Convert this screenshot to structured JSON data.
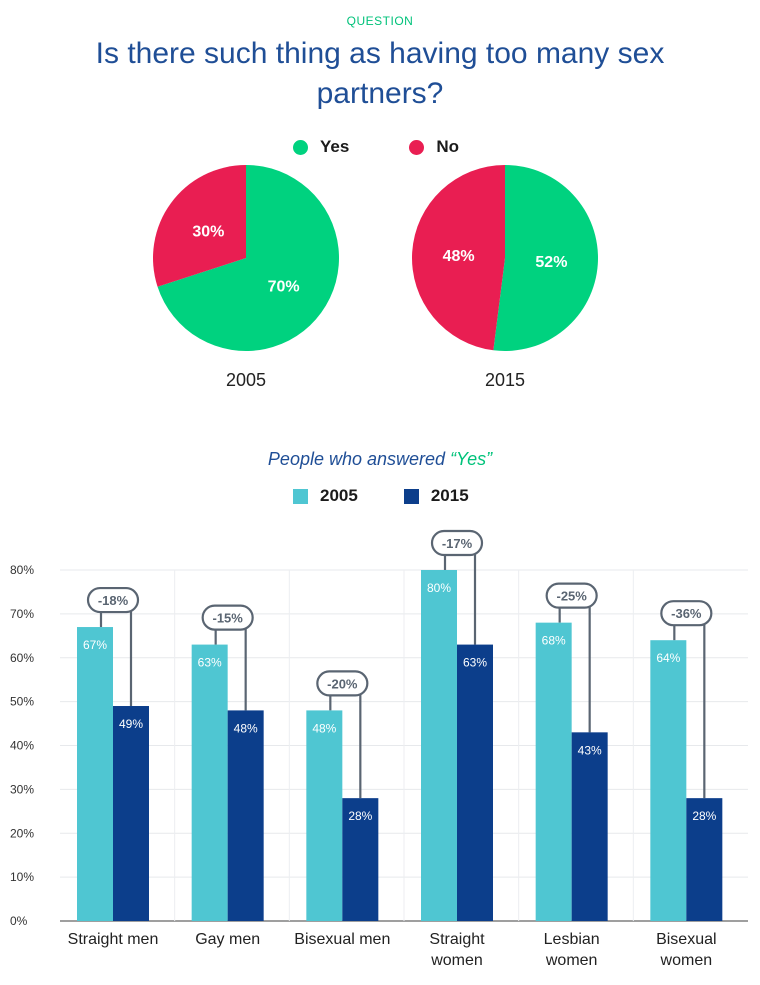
{
  "header": {
    "question_label": "QUESTION",
    "title": "Is there such thing as having too many sex partners?"
  },
  "colors": {
    "yes": "#00d27f",
    "no": "#e91e52",
    "bar_2005": "#4fc6d2",
    "bar_2015": "#0c3e8b",
    "bracket": "#5a6572"
  },
  "chart_data": [
    {
      "type": "pie",
      "legend": [
        "Yes",
        "No"
      ],
      "charts": [
        {
          "label": "2005",
          "slices": [
            {
              "name": "Yes",
              "value": 70,
              "label": "70%"
            },
            {
              "name": "No",
              "value": 30,
              "label": "30%"
            }
          ]
        },
        {
          "label": "2015",
          "slices": [
            {
              "name": "Yes",
              "value": 52,
              "label": "52%"
            },
            {
              "name": "No",
              "value": 48,
              "label": "48%"
            }
          ]
        }
      ]
    },
    {
      "type": "bar",
      "title_prefix": "People who answered",
      "title_highlight": "“Yes”",
      "categories": [
        "Straight men",
        "Gay men",
        "Bisexual men",
        "Straight women",
        "Lesbian women",
        "Bisexual women"
      ],
      "series": [
        {
          "name": "2005",
          "values": [
            67,
            63,
            48,
            80,
            68,
            64
          ]
        },
        {
          "name": "2015",
          "values": [
            49,
            48,
            28,
            63,
            43,
            28
          ]
        }
      ],
      "changes": [
        "-18%",
        "-15%",
        "-20%",
        "-17%",
        "-25%",
        "-36%"
      ],
      "ylim": [
        0,
        80
      ],
      "yticks": [
        0,
        10,
        20,
        30,
        40,
        50,
        60,
        70,
        80
      ],
      "grid": true,
      "legend_position": "top-center"
    }
  ]
}
